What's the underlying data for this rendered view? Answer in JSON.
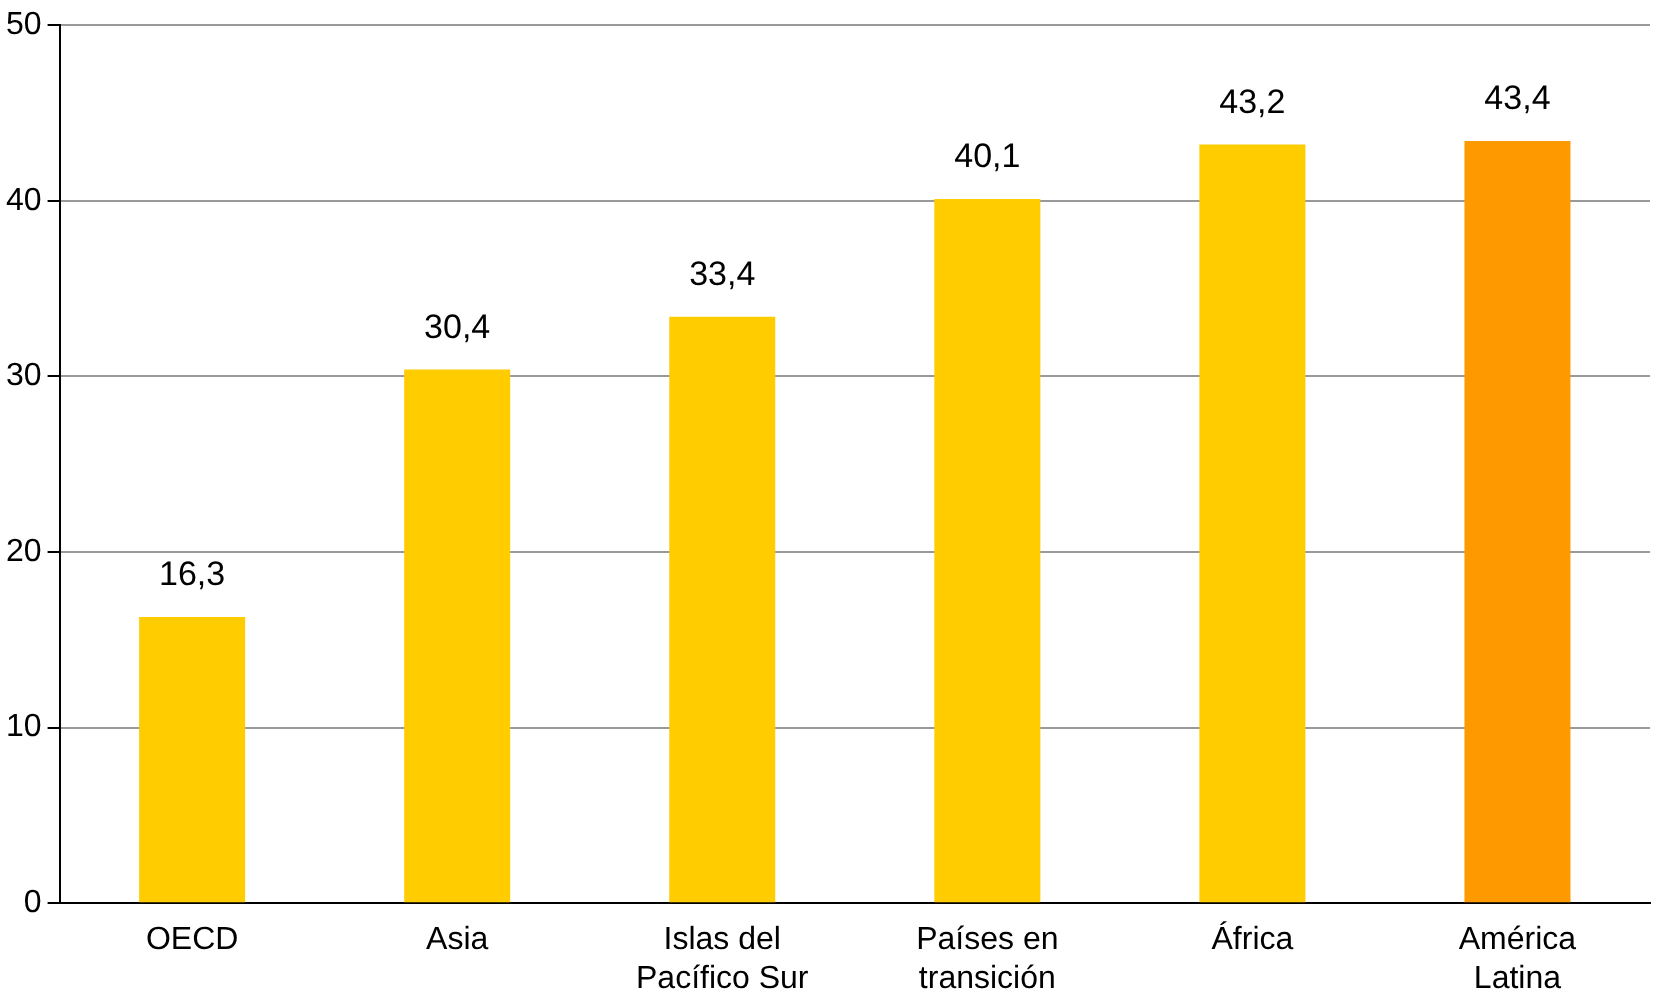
{
  "chart_data": {
    "type": "bar",
    "categories": [
      "OECD",
      "Asia",
      "Islas del Pacífico Sur",
      "Países en transición",
      "África",
      "América Latina"
    ],
    "values": [
      16.3,
      30.4,
      33.4,
      40.1,
      43.2,
      43.4
    ],
    "colors": [
      "#ffcc00",
      "#ffcc00",
      "#ffcc00",
      "#ffcc00",
      "#ffcc00",
      "#ff9900"
    ],
    "value_labels": [
      "16,3",
      "30,4",
      "33,4",
      "40,1",
      "43,2",
      "43,4"
    ],
    "ylim": [
      0,
      50
    ],
    "yticks": [
      0,
      10,
      20,
      30,
      40,
      50
    ],
    "grid": "y",
    "legend": false
  }
}
